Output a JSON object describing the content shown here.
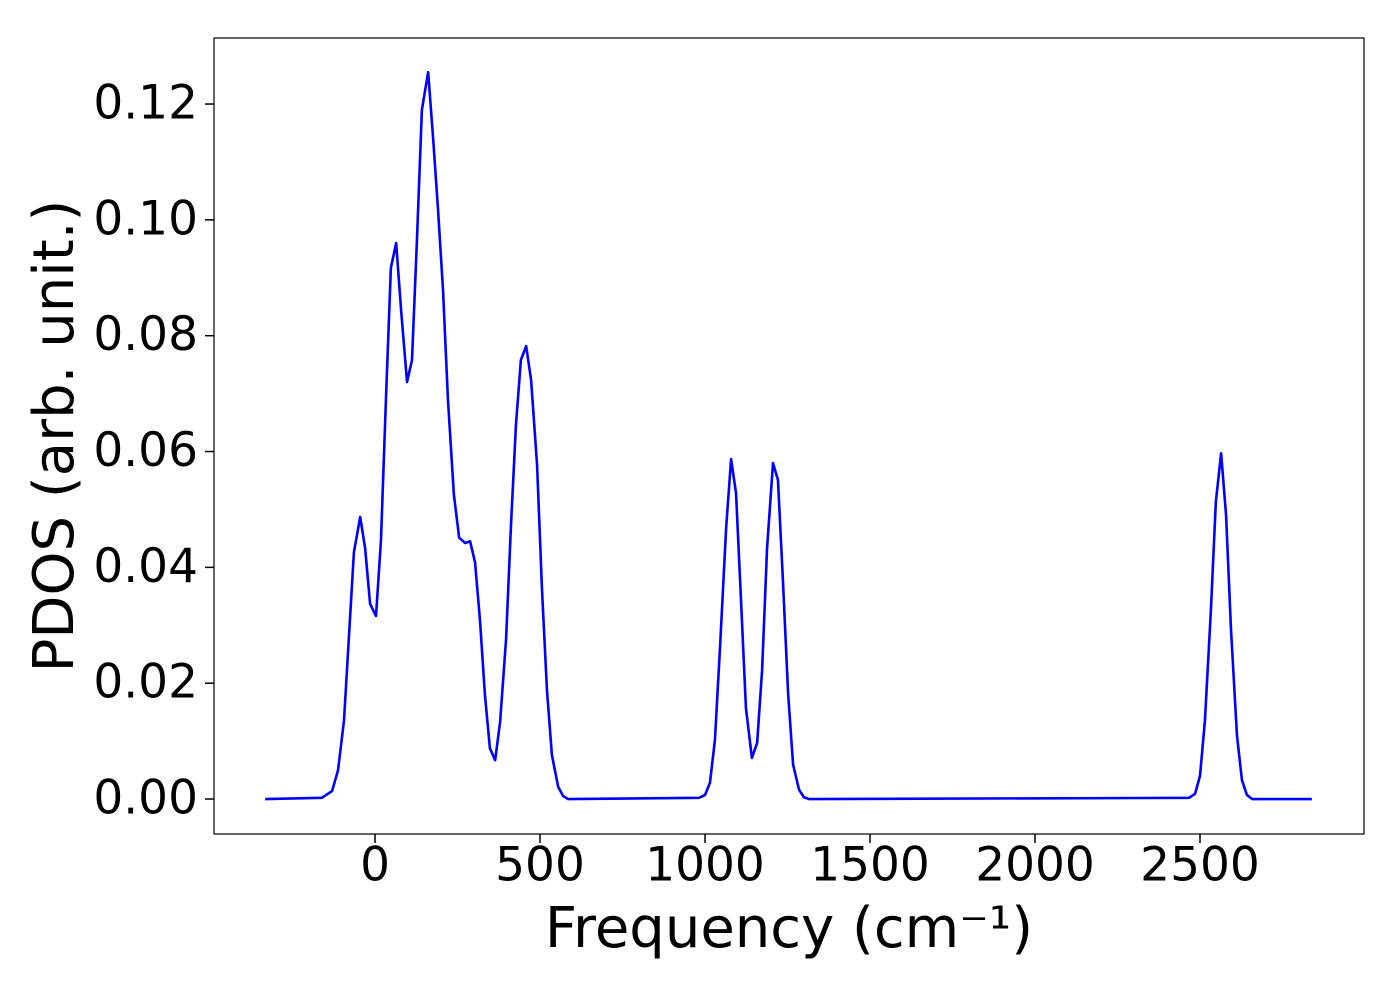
{
  "chart_data": {
    "type": "line",
    "xlabel": "Frequency (cm⁻¹)",
    "ylabel": "PDOS (arb. unit.)",
    "color": "#0000ff",
    "x": [
      -333,
      -161,
      -130,
      -112,
      -94,
      -64,
      -45,
      -30,
      -15,
      3,
      18,
      33,
      48,
      64,
      79,
      97,
      112,
      127,
      142,
      161,
      176,
      191,
      206,
      221,
      239,
      255,
      273,
      288,
      303,
      318,
      333,
      348,
      364,
      379,
      397,
      412,
      427,
      442,
      458,
      473,
      491,
      506,
      521,
      536,
      555,
      570,
      585,
      982,
      1000,
      1015,
      1030,
      1045,
      1064,
      1079,
      1094,
      1109,
      1124,
      1142,
      1158,
      1173,
      1188,
      1206,
      1221,
      1236,
      1252,
      1267,
      1285,
      1300,
      1315,
      2467,
      2485,
      2500,
      2515,
      2533,
      2548,
      2564,
      2579,
      2594,
      2612,
      2627,
      2642,
      2658,
      2839
    ],
    "values": [
      0,
      0.0002,
      0.0014,
      0.005,
      0.0136,
      0.0426,
      0.0487,
      0.0433,
      0.0337,
      0.0316,
      0.0447,
      0.0689,
      0.0917,
      0.096,
      0.0844,
      0.072,
      0.0758,
      0.0965,
      0.119,
      0.1255,
      0.1141,
      0.1017,
      0.0879,
      0.0689,
      0.0525,
      0.0451,
      0.0442,
      0.0445,
      0.0409,
      0.0309,
      0.018,
      0.0088,
      0.0067,
      0.0133,
      0.0275,
      0.0473,
      0.0646,
      0.0758,
      0.0782,
      0.0723,
      0.0577,
      0.0361,
      0.0188,
      0.0076,
      0.0021,
      0.0005,
      0,
      0.0002,
      0.0007,
      0.0028,
      0.0102,
      0.0257,
      0.0468,
      0.0587,
      0.0528,
      0.0344,
      0.0157,
      0.0071,
      0.0097,
      0.0223,
      0.0433,
      0.058,
      0.0551,
      0.0378,
      0.018,
      0.0059,
      0.0016,
      0.0003,
      0,
      0.0002,
      0.0009,
      0.004,
      0.0136,
      0.0326,
      0.0513,
      0.0597,
      0.049,
      0.0292,
      0.011,
      0.0033,
      0.0007,
      0,
      0
    ],
    "xlim": [
      -488,
      2997
    ],
    "xticks": [
      0,
      500,
      1000,
      1500,
      2000,
      2500
    ],
    "ylim": [
      -0.00604,
      0.1314
    ],
    "yticks": [
      {
        "value": 0,
        "label": "0.00"
      },
      0.02,
      0.04,
      0.06,
      0.08,
      {
        "value": 0.1,
        "label": "0.10"
      },
      0.12
    ],
    "grid": false
  }
}
